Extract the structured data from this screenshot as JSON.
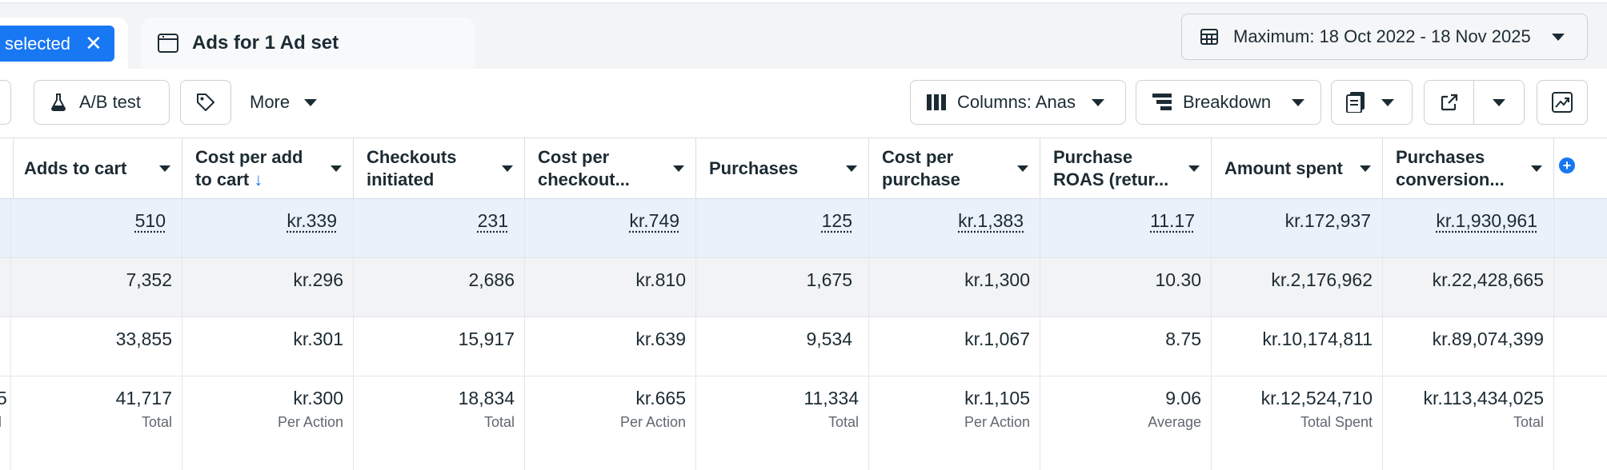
{
  "tabs": {
    "selected_chip": "selected",
    "ads_tab_label": "Ads for 1 Ad set"
  },
  "date_range": "Maximum: 18 Oct 2022 - 18 Nov 2025",
  "toolbar": {
    "ab_test": "A/B test",
    "more": "More",
    "columns": "Columns: Anas",
    "breakdown": "Breakdown"
  },
  "table": {
    "headers": [
      {
        "l1": "Adds to cart",
        "l2": ""
      },
      {
        "l1": "Cost per add",
        "l2": "to cart"
      },
      {
        "l1": "Checkouts",
        "l2": "initiated"
      },
      {
        "l1": "Cost per",
        "l2": "checkout..."
      },
      {
        "l1": "Purchases",
        "l2": ""
      },
      {
        "l1": "Cost per",
        "l2": "purchase"
      },
      {
        "l1": "Purchase",
        "l2": "ROAS (retur..."
      },
      {
        "l1": "Amount spent",
        "l2": ""
      },
      {
        "l1": "Purchases",
        "l2": "conversion..."
      }
    ],
    "rows": [
      [
        "510",
        "kr.339",
        "231",
        "kr.749",
        "125",
        "kr.1,383",
        "11.17",
        "kr.172,937",
        "kr.1,930,961"
      ],
      [
        "7,352",
        "kr.296",
        "2,686",
        "kr.810",
        "1,675",
        "kr.1,300",
        "10.30",
        "kr.2,176,962",
        "kr.22,428,665"
      ],
      [
        "33,855",
        "kr.301",
        "15,917",
        "kr.639",
        "9,534",
        "kr.1,067",
        "8.75",
        "kr.10,174,811",
        "kr.89,074,399"
      ]
    ],
    "totals": [
      "41,717",
      "kr.300",
      "18,834",
      "kr.665",
      "11,334",
      "kr.1,105",
      "9.06",
      "kr.12,524,710",
      "kr.113,434,025"
    ],
    "total_labels": [
      "Total",
      "Per Action",
      "Total",
      "Per Action",
      "Total",
      "Per Action",
      "Average",
      "Total Spent",
      "Total"
    ],
    "left_edge_fragments": [
      "5",
      "l"
    ]
  },
  "colors": {
    "accent": "#1877f2",
    "selected_row": "#eaf1fb",
    "alt_row": "#f2f3f5"
  }
}
